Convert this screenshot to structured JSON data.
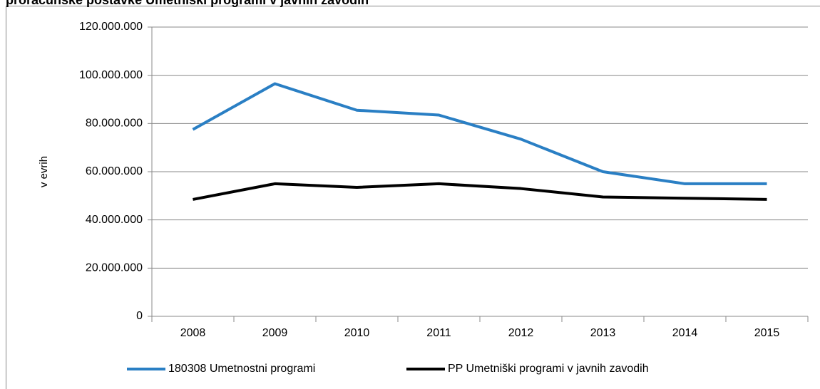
{
  "chart_data": {
    "type": "line",
    "title": "proračunske postavke Umetniški programi v javnih zavodih",
    "y_label": "v evrih",
    "categories": [
      "2008",
      "2009",
      "2010",
      "2011",
      "2012",
      "2013",
      "2014",
      "2015"
    ],
    "series": [
      {
        "name": "180308 Umetnostni programi",
        "color": "#2a7fc4",
        "values": [
          77500000,
          96500000,
          85500000,
          83500000,
          73500000,
          60000000,
          55000000,
          55000000
        ]
      },
      {
        "name": "PP Umetniški programi v javnih zavodih",
        "color": "#000000",
        "values": [
          48500000,
          55000000,
          53500000,
          55000000,
          53000000,
          49500000,
          49000000,
          48500000
        ]
      }
    ],
    "ylim": [
      0,
      120000000
    ],
    "yticks": [
      0,
      {
        "value": 20000000,
        "label": "20.000.000"
      },
      {
        "value": 40000000,
        "label": "40.000.000"
      },
      {
        "value": 60000000,
        "label": "60.000.000"
      },
      {
        "value": 80000000,
        "label": "80.000.000"
      },
      {
        "value": 100000000,
        "label": "100.000.000"
      },
      {
        "value": 120000000,
        "label": "120.000.000"
      }
    ],
    "grid": true,
    "legend": "bottom"
  }
}
